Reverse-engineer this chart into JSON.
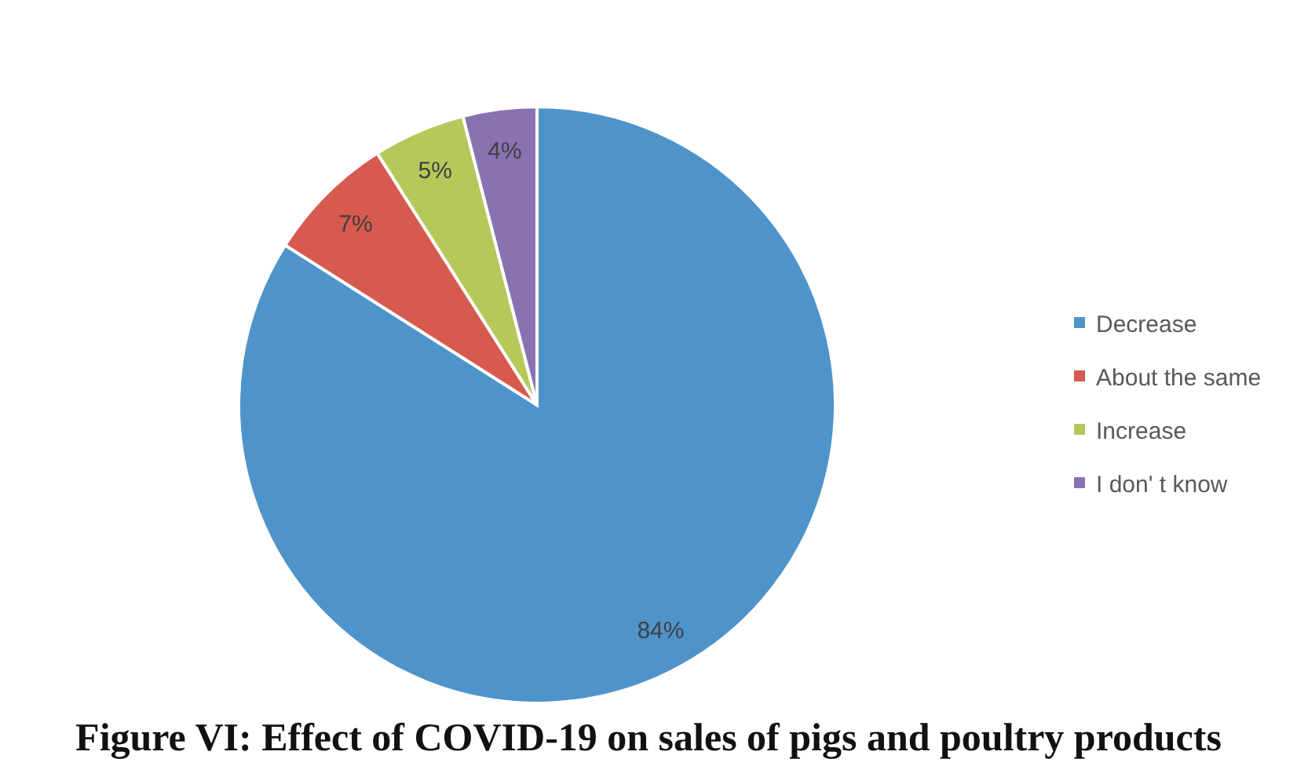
{
  "chart_data": {
    "type": "pie",
    "title": "Figure VI: Effect of COVID-19 on sales of pigs and poultry products",
    "categories": [
      "Decrease",
      "About the same",
      "Increase",
      "I don' t know"
    ],
    "values": [
      84,
      7,
      5,
      4
    ],
    "colors": [
      "#4f93cb",
      "#d65a4e",
      "#b5c95a",
      "#8a72b0"
    ],
    "value_labels": [
      "84%",
      "7%",
      "5%",
      "4%"
    ],
    "legend": "right"
  }
}
